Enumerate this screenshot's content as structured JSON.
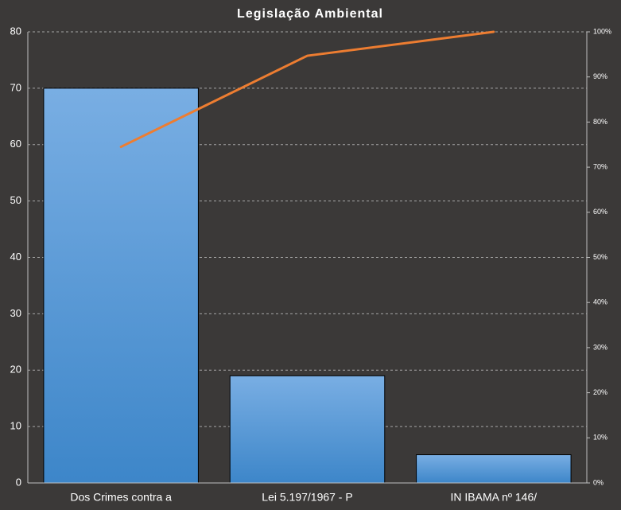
{
  "chart_data": {
    "type": "bar",
    "title": "Legislação Ambiental",
    "categories": [
      "Dos Crimes contra  a",
      "Lei 5.197/1967 - P",
      "IN IBAMA nº 146/"
    ],
    "values": [
      70,
      19,
      5
    ],
    "color": "#5b9bd5",
    "cumulative": {
      "values": [
        74.5,
        94.7,
        100
      ],
      "axis": "y2",
      "color": "#ed7d31"
    },
    "ylim": [
      0,
      80
    ],
    "yticks": [
      0,
      10,
      20,
      30,
      40,
      50,
      60,
      70,
      80
    ],
    "y2lim": [
      0,
      100
    ],
    "y2ticks": [
      {
        "value": 0,
        "label": "0%"
      },
      {
        "value": 10,
        "label": "10%"
      },
      {
        "value": 20,
        "label": "20%"
      },
      {
        "value": 30,
        "label": "30%"
      },
      {
        "value": 40,
        "label": "40%"
      },
      {
        "value": 50,
        "label": "50%"
      },
      {
        "value": 60,
        "label": "60%"
      },
      {
        "value": 70,
        "label": "70%"
      },
      {
        "value": 80,
        "label": "80%"
      },
      {
        "value": 90,
        "label": "90%"
      },
      {
        "value": 100,
        "label": "100%"
      }
    ],
    "grid": true
  }
}
